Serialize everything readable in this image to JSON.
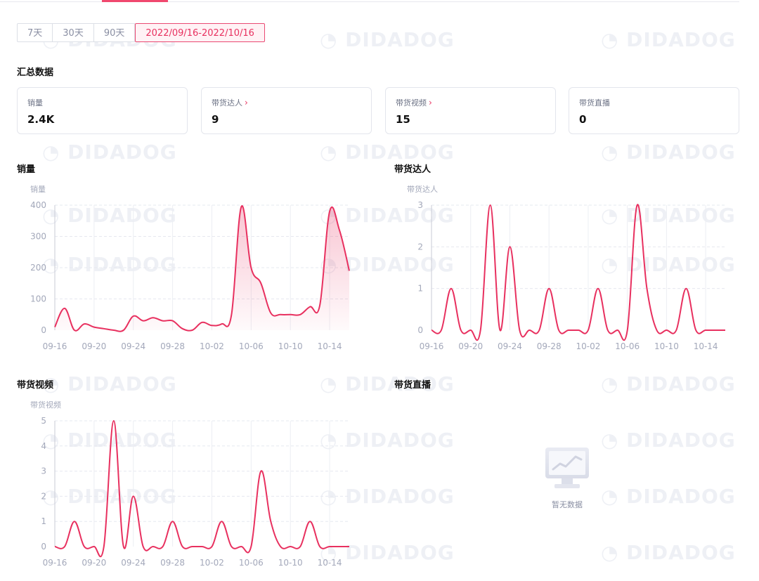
{
  "range_tabs": [
    {
      "label": "7天",
      "active": false
    },
    {
      "label": "30天",
      "active": false
    },
    {
      "label": "90天",
      "active": false
    },
    {
      "label": "2022/09/16-2022/10/16",
      "active": true
    }
  ],
  "summary": {
    "title": "汇总数据",
    "cards": [
      {
        "label": "销量",
        "value": "2.4K",
        "link": false
      },
      {
        "label": "带货达人",
        "value": "9",
        "link": true
      },
      {
        "label": "带货视频",
        "value": "15",
        "link": true
      },
      {
        "label": "带货直播",
        "value": "0",
        "link": false
      }
    ]
  },
  "accent_color": "#e8305f",
  "watermark": "DIDADOG",
  "chart_data": [
    {
      "id": "sales",
      "type": "area",
      "title": "销量",
      "ylabel": "销量",
      "ylim": [
        0,
        400
      ],
      "yticks": [
        0,
        100,
        200,
        300,
        400
      ],
      "xlabels": [
        "09-16",
        "09-20",
        "09-24",
        "09-28",
        "10-02",
        "10-06",
        "10-10",
        "10-14"
      ],
      "x": [
        "09-16",
        "09-17",
        "09-18",
        "09-19",
        "09-20",
        "09-21",
        "09-22",
        "09-23",
        "09-24",
        "09-25",
        "09-26",
        "09-27",
        "09-28",
        "09-29",
        "09-30",
        "10-01",
        "10-02",
        "10-03",
        "10-04",
        "10-05",
        "10-06",
        "10-07",
        "10-08",
        "10-09",
        "10-10",
        "10-11",
        "10-12",
        "10-13",
        "10-14",
        "10-15",
        "10-16"
      ],
      "values": [
        10,
        70,
        0,
        20,
        10,
        5,
        0,
        0,
        45,
        30,
        40,
        30,
        30,
        5,
        0,
        25,
        15,
        20,
        50,
        395,
        200,
        150,
        55,
        50,
        50,
        50,
        75,
        80,
        380,
        320,
        190
      ],
      "color": "#e8305f"
    },
    {
      "id": "influencers",
      "type": "line",
      "title": "带货达人",
      "ylabel": "带货达人",
      "ylim": [
        0,
        3
      ],
      "yticks": [
        0,
        1,
        2,
        3
      ],
      "xlabels": [
        "09-16",
        "09-20",
        "09-24",
        "09-28",
        "10-02",
        "10-06",
        "10-10",
        "10-14"
      ],
      "x": [
        "09-16",
        "09-17",
        "09-18",
        "09-19",
        "09-20",
        "09-21",
        "09-22",
        "09-23",
        "09-24",
        "09-25",
        "09-26",
        "09-27",
        "09-28",
        "09-29",
        "09-30",
        "10-01",
        "10-02",
        "10-03",
        "10-04",
        "10-05",
        "10-06",
        "10-07",
        "10-08",
        "10-09",
        "10-10",
        "10-11",
        "10-12",
        "10-13",
        "10-14",
        "10-15",
        "10-16"
      ],
      "values": [
        0,
        0,
        1,
        0,
        0,
        0,
        3,
        0,
        2,
        0,
        0,
        0,
        1,
        0,
        0,
        0,
        0,
        1,
        0,
        0,
        0,
        3,
        1,
        0,
        0,
        0,
        1,
        0,
        0,
        0,
        0
      ],
      "color": "#e8305f"
    },
    {
      "id": "videos",
      "type": "line",
      "title": "带货视频",
      "ylabel": "带货视频",
      "ylim": [
        0,
        5
      ],
      "yticks": [
        0,
        1,
        2,
        3,
        4,
        5
      ],
      "xlabels": [
        "09-16",
        "09-20",
        "09-24",
        "09-28",
        "10-02",
        "10-06",
        "10-10",
        "10-14"
      ],
      "x": [
        "09-16",
        "09-17",
        "09-18",
        "09-19",
        "09-20",
        "09-21",
        "09-22",
        "09-23",
        "09-24",
        "09-25",
        "09-26",
        "09-27",
        "09-28",
        "09-29",
        "09-30",
        "10-01",
        "10-02",
        "10-03",
        "10-04",
        "10-05",
        "10-06",
        "10-07",
        "10-08",
        "10-09",
        "10-10",
        "10-11",
        "10-12",
        "10-13",
        "10-14",
        "10-15",
        "10-16"
      ],
      "values": [
        0,
        0,
        1,
        0,
        0,
        0,
        5,
        0,
        2,
        0,
        0,
        0,
        1,
        0,
        0,
        0,
        0,
        1,
        0,
        0,
        0,
        3,
        1,
        0,
        0,
        0,
        1,
        0,
        0,
        0,
        0
      ],
      "color": "#e8305f"
    }
  ],
  "live_chart": {
    "title": "带货直播",
    "empty_text": "暂无数据"
  }
}
